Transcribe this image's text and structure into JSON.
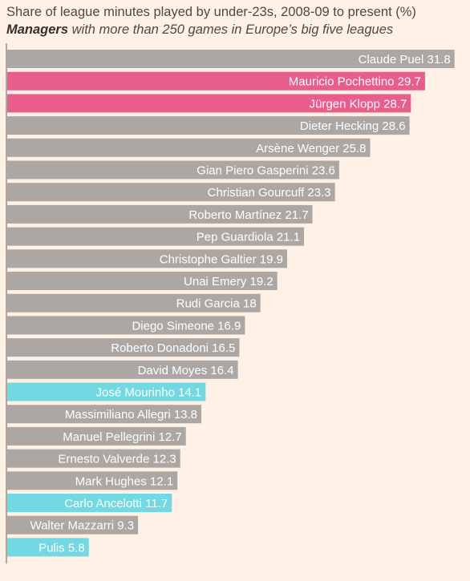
{
  "header": {
    "title": "Share of league minutes played by under-23s, 2008-09 to present (%)",
    "subtitle_bold": "Managers",
    "subtitle_rest": " with more than 250 games in Europe’s big five leagues"
  },
  "colors": {
    "default": "#aca7a3",
    "pink": "#e95d8c",
    "cyan": "#72d8e2",
    "background": "#fff1e5",
    "axis": "#66605c"
  },
  "chart_data": {
    "type": "bar",
    "orientation": "horizontal",
    "title": "Share of league minutes played by under-23s, 2008-09 to present (%)",
    "subtitle": "Managers with more than 250 games in Europe’s big five leagues",
    "xlim": [
      0,
      32.5
    ],
    "categories": [
      "Claude Puel",
      "Mauricio Pochettino",
      "Jürgen Klopp",
      "Dieter Hecking",
      "Arsène Wenger",
      "Gian Piero Gasperini",
      "Christian Gourcuff",
      "Roberto Martínez",
      "Pep Guardiola",
      "Christophe Galtier",
      "Unai Emery",
      "Rudi Garcia",
      "Diego Simeone",
      "Roberto Donadoni",
      "David Moyes",
      "José Mourinho",
      "Massimiliano Allegri",
      "Manuel Pellegrini",
      "Ernesto Valverde",
      "Mark Hughes",
      "Carlo Ancelotti",
      "Walter Mazzarri",
      "Pulis"
    ],
    "values": [
      31.8,
      29.7,
      28.7,
      28.6,
      25.8,
      23.6,
      23.3,
      21.7,
      21.1,
      19.9,
      19.2,
      18,
      16.9,
      16.5,
      16.4,
      14.1,
      13.8,
      12.7,
      12.3,
      12.1,
      11.7,
      9.3,
      5.8
    ],
    "value_labels": [
      "31.8",
      "29.7",
      "28.7",
      "28.6",
      "25.8",
      "23.6",
      "23.3",
      "21.7",
      "21.1",
      "19.9",
      "19.2",
      "18",
      "16.9",
      "16.5",
      "16.4",
      "14.1",
      "13.8",
      "12.7",
      "12.3",
      "12.1",
      "11.7",
      "9.3",
      "5.8"
    ],
    "highlight": [
      "default",
      "pink",
      "pink",
      "default",
      "default",
      "default",
      "default",
      "default",
      "default",
      "default",
      "default",
      "default",
      "default",
      "default",
      "default",
      "cyan",
      "default",
      "default",
      "default",
      "default",
      "cyan",
      "default",
      "cyan"
    ]
  }
}
